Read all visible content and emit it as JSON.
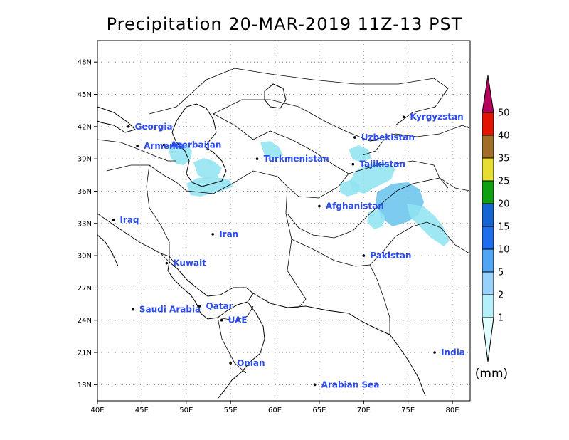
{
  "title": "Precipitation 20-MAR-2019 11Z-13 PST",
  "map": {
    "lon_range": [
      40,
      82
    ],
    "lat_range": [
      16.5,
      50
    ],
    "lon_ticks": [
      {
        "value": 40,
        "label": "40E"
      },
      {
        "value": 45,
        "label": "45E"
      },
      {
        "value": 50,
        "label": "50E"
      },
      {
        "value": 55,
        "label": "55E"
      },
      {
        "value": 60,
        "label": "60E"
      },
      {
        "value": 65,
        "label": "65E"
      },
      {
        "value": 70,
        "label": "70E"
      },
      {
        "value": 75,
        "label": "75E"
      },
      {
        "value": 80,
        "label": "80E"
      }
    ],
    "lat_ticks": [
      {
        "value": 18,
        "label": "18N"
      },
      {
        "value": 21,
        "label": "21N"
      },
      {
        "value": 24,
        "label": "24N"
      },
      {
        "value": 27,
        "label": "27N"
      },
      {
        "value": 30,
        "label": "30N"
      },
      {
        "value": 33,
        "label": "33N"
      },
      {
        "value": 36,
        "label": "36N"
      },
      {
        "value": 39,
        "label": "39N"
      },
      {
        "value": 42,
        "label": "42N"
      },
      {
        "value": 45,
        "label": "45N"
      },
      {
        "value": 48,
        "label": "48N"
      }
    ],
    "places": [
      {
        "name": "Georgia",
        "lon": 43.5,
        "lat": 42.0
      },
      {
        "name": "Azerbaijan",
        "lon": 47.5,
        "lat": 40.3
      },
      {
        "name": "Armenia",
        "lon": 44.5,
        "lat": 40.2
      },
      {
        "name": "Turkmenistan",
        "lon": 58.0,
        "lat": 39.0
      },
      {
        "name": "Uzbekistan",
        "lon": 69.0,
        "lat": 41.0
      },
      {
        "name": "Kyrgyzstan",
        "lon": 74.5,
        "lat": 42.9
      },
      {
        "name": "Tajikistan",
        "lon": 68.8,
        "lat": 38.5
      },
      {
        "name": "Iraq",
        "lon": 41.8,
        "lat": 33.3
      },
      {
        "name": "Iran",
        "lon": 53.0,
        "lat": 32.0
      },
      {
        "name": "Afghanistan",
        "lon": 65.0,
        "lat": 34.6
      },
      {
        "name": "Kuwait",
        "lon": 47.8,
        "lat": 29.3
      },
      {
        "name": "Pakistan",
        "lon": 70.0,
        "lat": 30.0
      },
      {
        "name": "Qatar",
        "lon": 51.5,
        "lat": 25.3
      },
      {
        "name": "Saudi Arabia",
        "lon": 44.0,
        "lat": 25.0
      },
      {
        "name": "UAE",
        "lon": 54.0,
        "lat": 24.0
      },
      {
        "name": "India",
        "lon": 78.0,
        "lat": 21.0
      },
      {
        "name": "Oman",
        "lon": 55.0,
        "lat": 20.0
      },
      {
        "name": "Arabian Sea",
        "lon": 64.5,
        "lat": 18.0
      }
    ]
  },
  "legend": {
    "levels": [
      "1",
      "2",
      "5",
      "10",
      "15",
      "20",
      "25",
      "35",
      "40",
      "50"
    ],
    "colors": [
      "#e0fffe",
      "#b4f0fa",
      "#96d2fa",
      "#50a5f5",
      "#1e6eeb",
      "#1464d2",
      "#0fa00f",
      "#e6dc32",
      "#a06e28",
      "#e11400",
      "#b4005a"
    ],
    "unit": "(mm)"
  }
}
